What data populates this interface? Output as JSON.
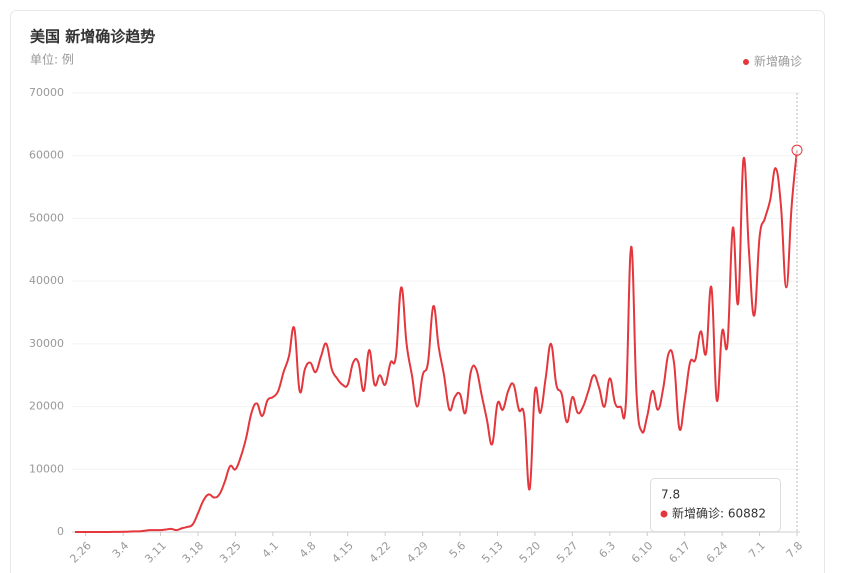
{
  "chart_data": {
    "type": "line",
    "title": "美国 新增确诊趋势",
    "subtitle": "单位: 例",
    "categories": [
      null,
      null,
      "2.26",
      null,
      null,
      null,
      null,
      null,
      null,
      "3.4",
      null,
      null,
      null,
      null,
      null,
      null,
      "3.11",
      null,
      null,
      null,
      null,
      null,
      null,
      "3.18",
      null,
      null,
      null,
      null,
      null,
      null,
      "3.25",
      null,
      null,
      null,
      null,
      null,
      null,
      "4.1",
      null,
      null,
      null,
      null,
      null,
      null,
      "4.8",
      null,
      null,
      null,
      null,
      null,
      null,
      "4.15",
      null,
      null,
      null,
      null,
      null,
      null,
      "4.22",
      null,
      null,
      null,
      null,
      null,
      null,
      "4.29",
      null,
      null,
      null,
      null,
      null,
      null,
      "5.6",
      null,
      null,
      null,
      null,
      null,
      null,
      "5.13",
      null,
      null,
      null,
      null,
      null,
      null,
      "5.20",
      null,
      null,
      null,
      null,
      null,
      null,
      "5.27",
      null,
      null,
      null,
      null,
      null,
      null,
      "6.3",
      null,
      null,
      null,
      null,
      null,
      null,
      "6.10",
      null,
      null,
      null,
      null,
      null,
      null,
      "6.17",
      null,
      null,
      null,
      null,
      null,
      null,
      "6.24",
      null,
      null,
      null,
      null,
      null,
      null,
      "7.1",
      null,
      null,
      null,
      null,
      null,
      null,
      "7.8"
    ],
    "series": [
      {
        "name": "新增确诊",
        "color": "#e3373d",
        "values": [
          0,
          0,
          0,
          0,
          0,
          0,
          0,
          10,
          20,
          30,
          50,
          100,
          100,
          200,
          300,
          300,
          300,
          400,
          500,
          300,
          600,
          800,
          1200,
          3000,
          5000,
          6000,
          5500,
          6000,
          8000,
          10500,
          10000,
          12000,
          15000,
          19000,
          20500,
          18500,
          21000,
          21500,
          22500,
          25500,
          28000,
          32500,
          22500,
          26000,
          27000,
          25500,
          28000,
          30000,
          26000,
          24500,
          23500,
          23500,
          27000,
          27000,
          22500,
          29000,
          23500,
          25000,
          23500,
          27000,
          28000,
          39000,
          30000,
          25000,
          20000,
          25000,
          27000,
          36000,
          29500,
          25000,
          19500,
          21500,
          22000,
          19000,
          25500,
          26000,
          22000,
          18000,
          14000,
          20500,
          19500,
          22500,
          23500,
          19500,
          18500,
          6800,
          22500,
          19000,
          24500,
          30000,
          23500,
          22000,
          17500,
          21500,
          19000,
          20000,
          22500,
          25000,
          23000,
          20000,
          24500,
          20500,
          20000,
          20500,
          45500,
          22000,
          16000,
          18500,
          22500,
          19500,
          23000,
          28500,
          27000,
          16500,
          21000,
          27000,
          27500,
          32000,
          28500,
          39000,
          21000,
          32000,
          30000,
          48500,
          36500,
          59500,
          45000,
          34500,
          47000,
          50000,
          53000,
          58000,
          52000,
          39000,
          52000,
          60882
        ]
      }
    ],
    "ylim": [
      0,
      70000
    ],
    "yticks": [
      0,
      10000,
      20000,
      30000,
      40000,
      50000,
      60000,
      70000
    ],
    "grid": true,
    "legend": "top-right",
    "tooltip": {
      "label": "新增确诊: 60882"
    }
  }
}
